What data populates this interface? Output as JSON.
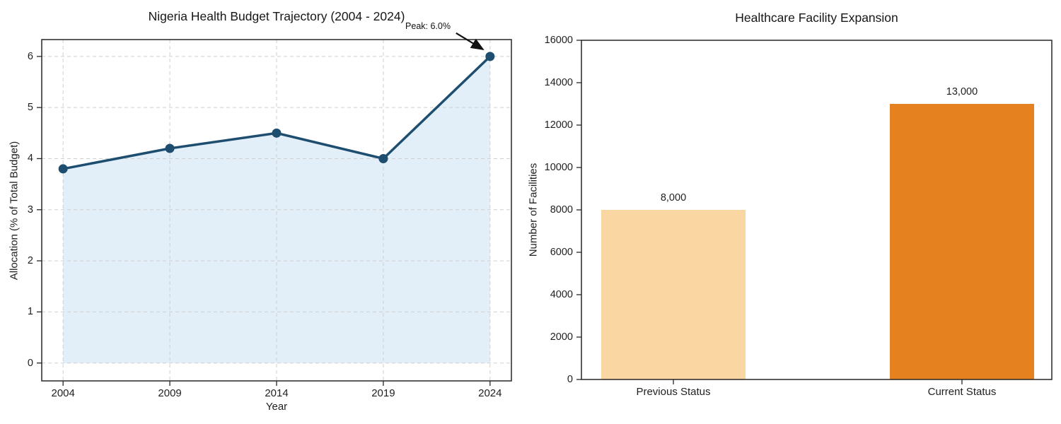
{
  "figure": {
    "background": "#ffffff"
  },
  "chart_data": [
    {
      "type": "area",
      "title": "Nigeria Health Budget Trajectory (2004 - 2024)",
      "xlabel": "Year",
      "ylabel": "Allocation (% of Total Budget)",
      "x": [
        2004,
        2009,
        2014,
        2019,
        2024
      ],
      "values": [
        3.8,
        4.2,
        4.5,
        4.0,
        6.0
      ],
      "xticks": [
        2004,
        2009,
        2014,
        2019,
        2024
      ],
      "yticks": [
        0,
        1,
        2,
        3,
        4,
        5,
        6
      ],
      "xlim": [
        2003,
        2025
      ],
      "ylim": [
        -0.35,
        6.33
      ],
      "grid": true,
      "line_color": "#1e4e6f",
      "marker": "circle",
      "fill_color": "#e2eef8",
      "annotation": {
        "text": "Peak: 6.0%",
        "x": 2024,
        "y": 6.0
      }
    },
    {
      "type": "bar",
      "title": "Healthcare Facility Expansion",
      "xlabel": "",
      "ylabel": "Number of Facilities",
      "categories": [
        "Previous Status",
        "Current Status"
      ],
      "values": [
        8000,
        13000
      ],
      "bar_labels": [
        "8,000",
        "13,000"
      ],
      "bar_colors": [
        "#f9d6a2",
        "#e5811f"
      ],
      "yticks": [
        0,
        2000,
        4000,
        6000,
        8000,
        10000,
        12000,
        14000,
        16000
      ],
      "ylim": [
        0,
        16000
      ],
      "grid": false
    }
  ]
}
